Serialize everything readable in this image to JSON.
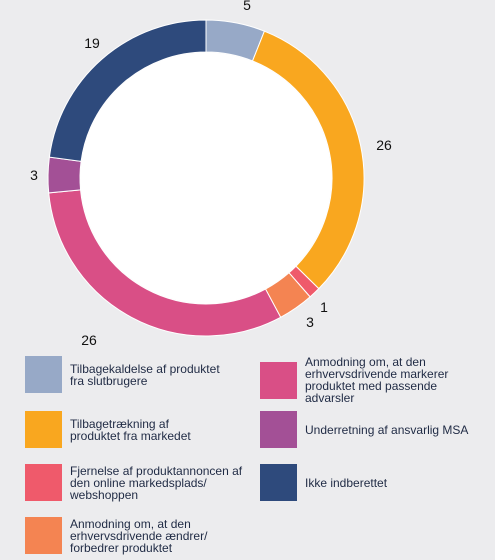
{
  "chart_data": {
    "type": "pie",
    "style": "donut",
    "categories": [
      "Tilbagekaldelse af produktet fra slutbrugere",
      "Tilbagetrækning af produktet fra markedet",
      "Fjernelse af produktannoncen af den online markedsplads/ webshoppen",
      "Anmodning om, at den erhvervsdrivende ændrer/ forbedrer produktet",
      "Anmodning om, at den erhvervsdrivende markerer produktet med passende advarsler",
      "Underretning af ansvarlig MSA",
      "Ikke indberettet"
    ],
    "values": [
      5,
      26,
      1,
      3,
      26,
      3,
      19
    ],
    "data_labels": [
      "5",
      "26",
      "1",
      "3",
      "26",
      "3",
      "19"
    ],
    "colors": [
      "#97a9c7",
      "#f9a71f",
      "#ef5a6b",
      "#f48452",
      "#d94f86",
      "#a35096",
      "#2e4a7c"
    ],
    "legend_position": "bottom"
  },
  "legend": [
    {
      "label": "Tilbagekaldelse af produktet fra slutbrugere",
      "color": "#97a9c7"
    },
    {
      "label": "Tilbagetrækning af produktet fra markedet",
      "color": "#f9a71f"
    },
    {
      "label": "Fjernelse af produktannoncen af den online markedsplads/ webshoppen",
      "color": "#ef5a6b"
    },
    {
      "label": "Anmodning om, at den erhvervsdrivende ændrer/ forbedrer produktet",
      "color": "#f48452"
    },
    {
      "label": "Anmodning om, at den erhvervsdrivende markerer produktet med passende advarsler",
      "color": "#d94f86"
    },
    {
      "label": "Underretning af ansvarlig MSA",
      "color": "#a35096"
    },
    {
      "label": "Ikke indberettet",
      "color": "#2e4a7c"
    }
  ]
}
